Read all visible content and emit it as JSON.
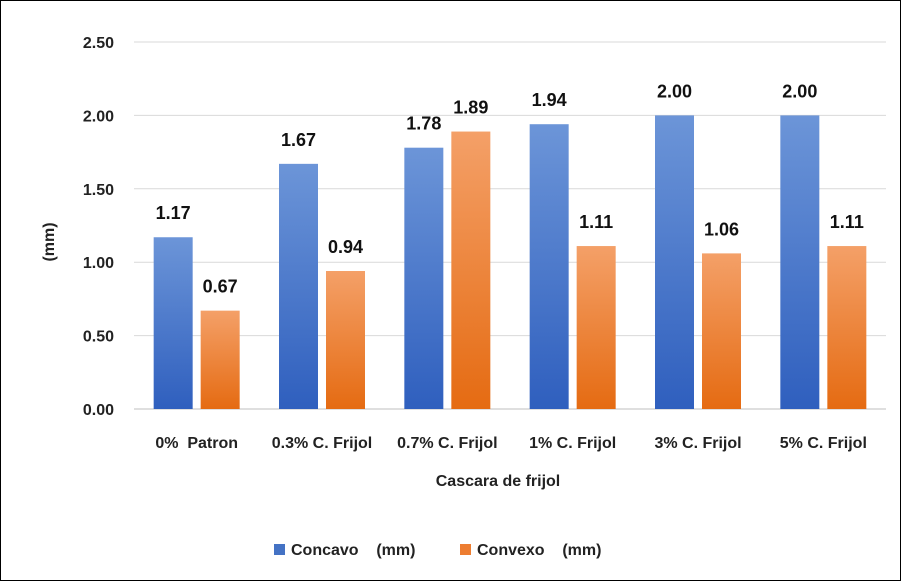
{
  "chart_data": {
    "type": "bar",
    "categories": [
      "0%  Patron",
      "0.3% C. Frijol",
      "0.7% C. Frijol",
      "1% C. Frijol",
      "3% C. Frijol",
      "5% C. Frijol"
    ],
    "series": [
      {
        "name": "Concavo    (mm)",
        "values": [
          1.17,
          1.67,
          1.78,
          1.94,
          2.0,
          2.0
        ],
        "color": "#4472C4"
      },
      {
        "name": "Convexo    (mm)",
        "values": [
          0.67,
          0.94,
          1.89,
          1.11,
          1.06,
          1.11
        ],
        "color": "#ED7D31"
      }
    ],
    "value_labels": [
      [
        "1.17",
        "1.67",
        "1.78",
        "1.94",
        "2.00",
        "2.00"
      ],
      [
        "0.67",
        "0.94",
        "1.89",
        "1.11",
        "1.06",
        "1.11"
      ]
    ],
    "y_ticks": [
      "0.00",
      "0.50",
      "1.00",
      "1.50",
      "2.00",
      "2.50"
    ],
    "ylim": [
      0,
      2.5
    ],
    "xlabel": "Cascara de frijol",
    "ylabel": "(mm)",
    "grid": true,
    "legend_position": "bottom"
  }
}
